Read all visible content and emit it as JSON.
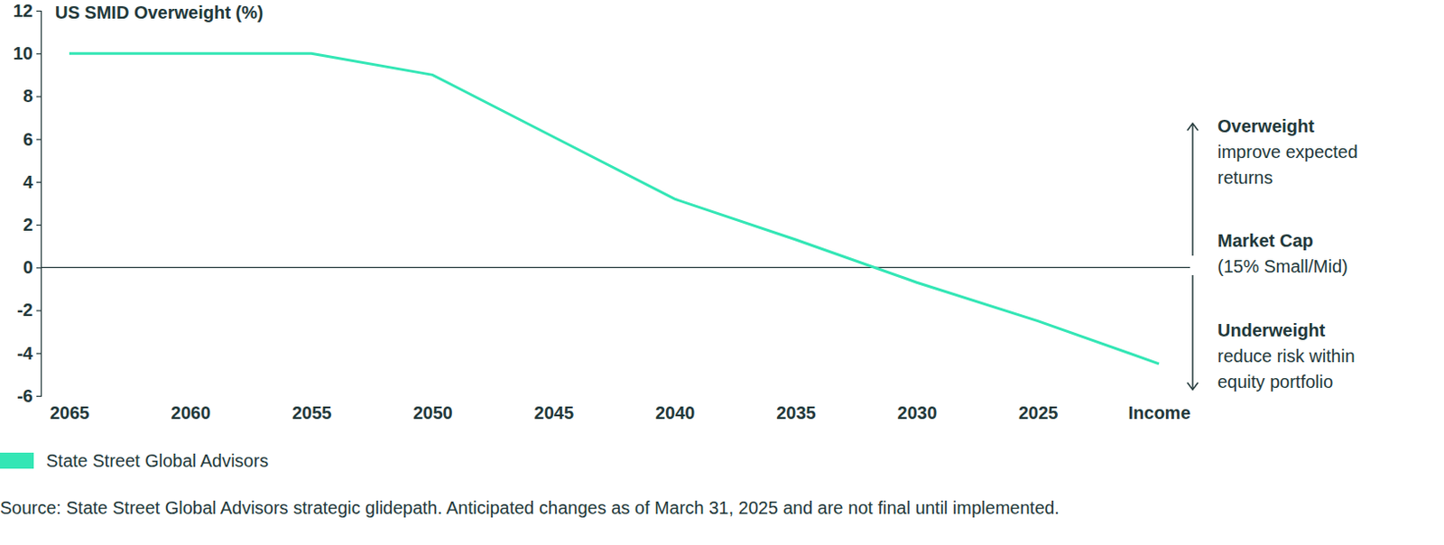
{
  "chart_data": {
    "type": "line",
    "y_label": "US SMID Overweight (%)",
    "categories": [
      "2065",
      "2060",
      "2055",
      "2050",
      "2045",
      "2040",
      "2035",
      "2030",
      "2025",
      "Income"
    ],
    "series": [
      {
        "name": "State Street Global Advisors",
        "color": "#33e6b5",
        "values": [
          10,
          10,
          10,
          9,
          6.1,
          3.2,
          1.3,
          -0.7,
          -2.5,
          -4.5
        ]
      }
    ],
    "ylim": [
      -6,
      12
    ],
    "yticks": [
      -6,
      -4,
      -2,
      0,
      2,
      4,
      6,
      8,
      10,
      12
    ],
    "grid": false,
    "legend": "bottom-left",
    "reference_line": 0,
    "annotations": [
      {
        "label": "Overweight",
        "text": [
          "improve expected",
          "returns"
        ]
      },
      {
        "label": "Market Cap",
        "text": [
          "(15% Small/Mid)"
        ]
      },
      {
        "label": "Underweight",
        "text": [
          "reduce risk within",
          "equity portfolio"
        ]
      }
    ],
    "source": "Source: State Street Global Advisors strategic glidepath. Anticipated changes as of March 31, 2025 and are not final until implemented."
  }
}
